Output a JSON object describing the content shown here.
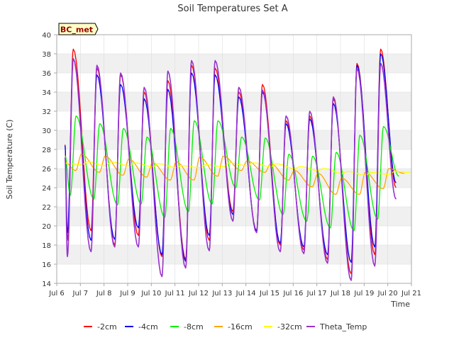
{
  "chart_data": {
    "type": "line",
    "title": "Soil Temperatures Set A",
    "xlabel": "Time",
    "ylabel": "Soil Temperature (C)",
    "annotation": "BC_met",
    "xlim": [
      6,
      21
    ],
    "ylim": [
      14,
      40
    ],
    "xticks": [
      6,
      7,
      8,
      9,
      10,
      11,
      12,
      13,
      14,
      15,
      16,
      17,
      18,
      19,
      20,
      21
    ],
    "xtick_labels": [
      "Jul 6",
      "Jul 7",
      "Jul 8",
      "Jul 9",
      "Jul 10",
      "Jul 11",
      "Jul 12",
      "Jul 13",
      "Jul 14",
      "Jul 15",
      "Jul 16",
      "Jul 17",
      "Jul 18",
      "Jul 19",
      "Jul 20",
      "Jul 21"
    ],
    "yticks": [
      14,
      16,
      18,
      20,
      22,
      24,
      26,
      28,
      30,
      32,
      34,
      36,
      38,
      40
    ],
    "ytick_labels": [
      "14",
      "16",
      "18",
      "20",
      "22",
      "24",
      "26",
      "28",
      "30",
      "32",
      "34",
      "36",
      "38",
      "40"
    ],
    "legend_position": "bottom",
    "daily_peaks": {
      "days": [
        6.7,
        7.7,
        8.7,
        9.7,
        10.7,
        11.7,
        12.7,
        13.7,
        14.7,
        15.7,
        16.7,
        17.7,
        18.7,
        19.7
      ],
      "-2cm": [
        38.5,
        36.5,
        35.8,
        34,
        35.2,
        36.8,
        36.5,
        34,
        34.8,
        31,
        31.5,
        33.3,
        37,
        38.5
      ],
      "-4cm": [
        37.5,
        35.8,
        34.8,
        33.3,
        34.3,
        36,
        35.8,
        33.5,
        34,
        30.7,
        31.2,
        32.8,
        36.8,
        38
      ],
      "-8cm": [
        31.5,
        30.7,
        30.2,
        29.3,
        30.2,
        31,
        31,
        29.3,
        29.2,
        27.5,
        27.3,
        27.7,
        29.5,
        30.4
      ],
      "-16cm": [
        27.5,
        27.3,
        27,
        26.6,
        26.7,
        27.2,
        27.3,
        26.8,
        26.5,
        25.8,
        25.5,
        25,
        25.6,
        26
      ],
      "-32cm": [
        26.7,
        26.7,
        26.6,
        26.5,
        26.3,
        26.4,
        26.6,
        26.6,
        26.5,
        26.2,
        26,
        25.7,
        25.6,
        25.7
      ],
      "Theta_Temp": [
        37.5,
        36.8,
        36,
        34.5,
        36.2,
        37.3,
        37.3,
        34.5,
        34.2,
        31.5,
        32,
        33.5,
        36.5,
        37
      ]
    },
    "daily_minima": {
      "days": [
        6.45,
        7.45,
        8.45,
        9.45,
        10.45,
        11.45,
        12.45,
        13.45,
        14.45,
        15.45,
        16.45,
        17.45,
        18.45,
        19.45,
        20.35
      ],
      "-2cm": [
        18.5,
        19.5,
        18,
        19,
        16.8,
        16.5,
        18.5,
        21.5,
        19.5,
        18,
        17.5,
        16.5,
        15,
        17,
        24
      ],
      "-4cm": [
        19.3,
        18.5,
        18.6,
        19.8,
        17,
        16.3,
        19,
        21.2,
        19.5,
        18.2,
        17.8,
        17,
        16.2,
        17.8,
        24.5
      ],
      "-8cm": [
        23.2,
        22.8,
        22.2,
        22.3,
        20.9,
        21.5,
        22.3,
        24,
        22.7,
        21.2,
        20.5,
        19.8,
        19.5,
        20.7,
        25.2
      ],
      "-16cm": [
        25.8,
        25.6,
        25.3,
        25.1,
        24.8,
        24.8,
        25.2,
        25.8,
        25.6,
        24.8,
        24.1,
        23.3,
        23.3,
        23.9,
        25.5
      ],
      "-32cm": [
        26.4,
        26.3,
        26.3,
        26.2,
        26.1,
        26.1,
        26.2,
        26.3,
        26.2,
        26,
        25.8,
        25.5,
        25.3,
        25.4,
        25.6
      ],
      "Theta_Temp": [
        16.8,
        17.3,
        17.8,
        17.8,
        14.7,
        15.6,
        17.4,
        20.5,
        19.3,
        17.3,
        17.1,
        16.1,
        14.3,
        15.8,
        22.8
      ]
    },
    "series": [
      {
        "name": "-2cm",
        "color": "#ff0000",
        "peak_offset": 0.0,
        "width": 1.3
      },
      {
        "name": "-4cm",
        "color": "#0000ee",
        "peak_offset": 0.0,
        "width": 1.3
      },
      {
        "name": "-8cm",
        "color": "#00ee00",
        "peak_offset": 0.12,
        "width": 1.3
      },
      {
        "name": "-16cm",
        "color": "#ffa500",
        "peak_offset": 0.35,
        "width": 1.3
      },
      {
        "name": "-32cm",
        "color": "#ffff00",
        "peak_offset": 0.6,
        "width": 1.3
      },
      {
        "name": "Theta_Temp",
        "color": "#9932cc",
        "peak_offset": 0.0,
        "width": 1.6
      }
    ],
    "start_x": 6.35,
    "end_x": 20.3
  },
  "colors": {
    "band": "#f0f0f0",
    "grid": "#dddddd",
    "axis": "#aaaaaa",
    "annotation_fill": "#ffffc8",
    "annotation_text": "#990000"
  }
}
